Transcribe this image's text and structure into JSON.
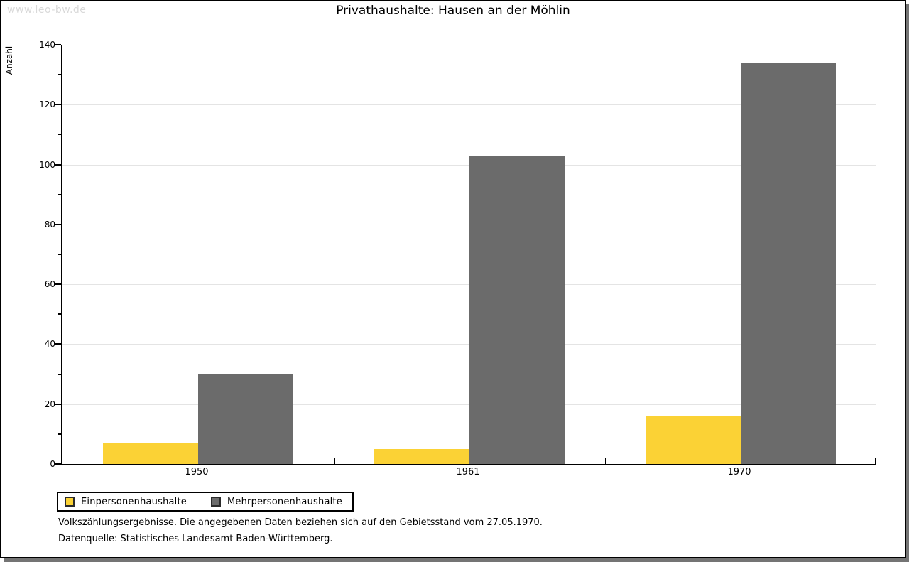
{
  "watermark": "www.leo-bw.de",
  "title": "Privathaushalte: Hausen an der Möhlin",
  "chart_data": {
    "type": "bar",
    "title": "Privathaushalte: Hausen an der Möhlin",
    "xlabel": "",
    "ylabel": "Anzahl",
    "categories": [
      "1950",
      "1961",
      "1970"
    ],
    "series": [
      {
        "name": "Einpersonenhaushalte",
        "color": "#fbd235",
        "values": [
          7,
          5,
          16
        ]
      },
      {
        "name": "Mehrpersonenhaushalte",
        "color": "#6b6b6b",
        "values": [
          30,
          103,
          134
        ]
      }
    ],
    "ylim": [
      0,
      140
    ],
    "ytick_step": 20,
    "yminor_step": 10,
    "grid": true,
    "legend_position": "bottom-left"
  },
  "footnotes": {
    "census": "Volkszählungsergebnisse. Die angegebenen Daten beziehen sich auf den Gebietsstand vom 27.05.1970.",
    "source": "Datenquelle: Statistisches Landesamt Baden-Württemberg."
  }
}
